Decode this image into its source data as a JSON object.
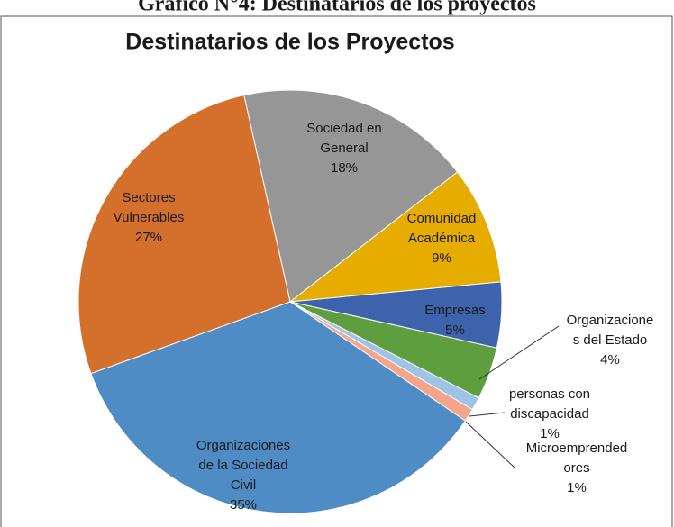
{
  "caption": "Gráfico N°4: Destinatarios de los proyectos",
  "chart_data": {
    "type": "pie",
    "title": "Destinatarios de los Proyectos",
    "categories": [
      "Sociedad en\nGeneral",
      "Comunidad\nAcadémica",
      "Empresas",
      "Organizacione\ns del Estado",
      "personas con\ndiscapacidad",
      "Microemprended\nores",
      "Organizaciones\nde la Sociedad\nCivil",
      "Sectores\nVulnerables"
    ],
    "values": [
      18,
      9,
      5,
      4,
      1,
      1,
      35,
      27
    ],
    "value_labels": [
      "18%",
      "9%",
      "5%",
      "4%",
      "1%",
      "1%",
      "35%",
      "27%"
    ],
    "colors": [
      "#969696",
      "#e6ac00",
      "#3c63ab",
      "#5f9e3f",
      "#9dc3e6",
      "#f4a58a",
      "#4f8bc5",
      "#d4702c"
    ]
  }
}
